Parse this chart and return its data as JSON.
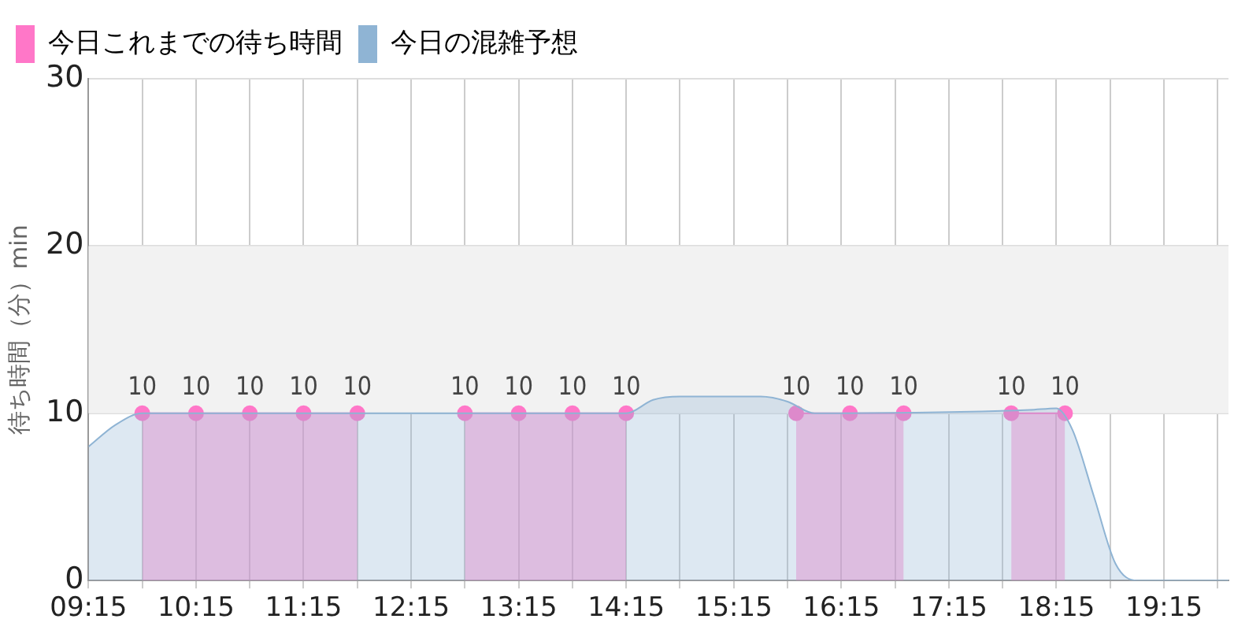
{
  "chart_data": {
    "type": "area",
    "ylabel": "待ち時間（分）min",
    "xlim": [
      9.25,
      19.85
    ],
    "xticks": [
      {
        "value": 9.25,
        "label": "09:15"
      },
      {
        "value": 9.75,
        "label": null
      },
      {
        "value": 10.25,
        "label": "10:15"
      },
      {
        "value": 10.75,
        "label": null
      },
      {
        "value": 11.25,
        "label": "11:15"
      },
      {
        "value": 11.75,
        "label": null
      },
      {
        "value": 12.25,
        "label": "12:15"
      },
      {
        "value": 12.75,
        "label": null
      },
      {
        "value": 13.25,
        "label": "13:15"
      },
      {
        "value": 13.75,
        "label": null
      },
      {
        "value": 14.25,
        "label": "14:15"
      },
      {
        "value": 14.75,
        "label": null
      },
      {
        "value": 15.25,
        "label": "15:15"
      },
      {
        "value": 15.75,
        "label": null
      },
      {
        "value": 16.25,
        "label": "16:15"
      },
      {
        "value": 16.75,
        "label": null
      },
      {
        "value": 17.25,
        "label": "17:15"
      },
      {
        "value": 17.75,
        "label": null
      },
      {
        "value": 18.25,
        "label": "18:15"
      },
      {
        "value": 18.75,
        "label": null
      },
      {
        "value": 19.25,
        "label": "19:15"
      },
      {
        "value": 19.75,
        "label": null
      }
    ],
    "ylim": [
      0,
      30
    ],
    "yticks": [
      0,
      10,
      20,
      30
    ],
    "grid": true,
    "legend": "top left",
    "bands": [
      {
        "axis": "y",
        "from": 10,
        "to": 20,
        "color": "#f2f2f2"
      }
    ],
    "series": [
      {
        "name": "今日これまでの待ち時間",
        "color": "#ff77c8",
        "marker": "circle",
        "data_labels": true,
        "x": [
          9.75,
          10.25,
          10.75,
          11.25,
          11.75,
          12.25,
          12.75,
          13.25,
          13.75,
          14.25,
          15.0,
          15.83,
          16.33,
          16.83,
          17.3,
          17.83,
          18.33
        ],
        "values": [
          10,
          10,
          10,
          10,
          10,
          null,
          10,
          10,
          10,
          10,
          null,
          10,
          10,
          10,
          null,
          10,
          10
        ]
      },
      {
        "name": "今日の混雑予想",
        "color": "#8fb4d4",
        "marker": "none",
        "x": [
          9.25,
          9.5,
          9.75,
          14.25,
          14.5,
          14.75,
          15.5,
          15.75,
          16.0,
          18.0,
          18.25,
          18.4,
          18.6,
          18.8,
          19.0,
          19.2,
          19.85
        ],
        "values": [
          8,
          9.3,
          10,
          10,
          10.8,
          11,
          11,
          10.7,
          10,
          10.2,
          10.3,
          9,
          5,
          1,
          0,
          0,
          0
        ]
      }
    ]
  }
}
